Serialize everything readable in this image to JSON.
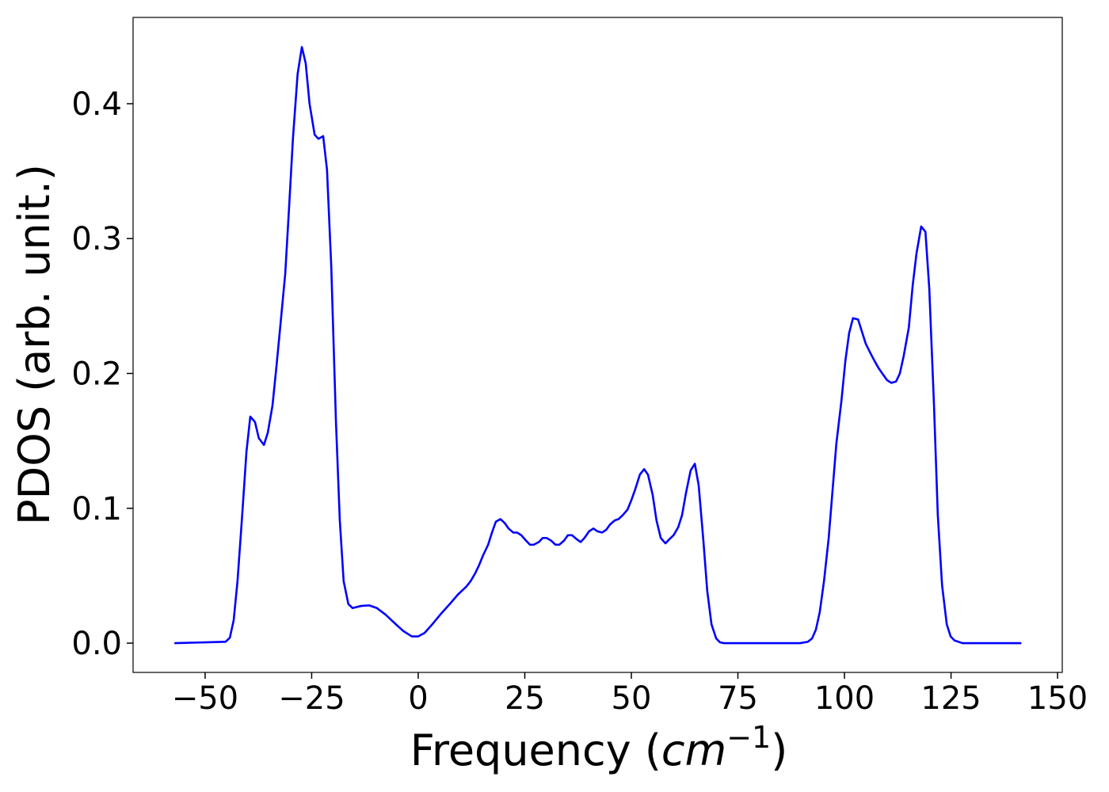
{
  "chart_data": {
    "type": "line",
    "xlabel": [
      "Frequency (",
      "cm",
      "−1",
      ")"
    ],
    "ylabel": "PDOS (arb. unit.)",
    "color": "#0000ff",
    "x": [
      -57.2,
      -45.2,
      -44.2,
      -43.3,
      -42.4,
      -41.3,
      -40.3,
      -39.4,
      -38.3,
      -37.4,
      -36.2,
      -35.3,
      -34.2,
      -33.3,
      -32.3,
      -31.2,
      -30.3,
      -29.4,
      -28.3,
      -27.3,
      -26.4,
      -25.5,
      -24.3,
      -23.4,
      -22.3,
      -21.4,
      -20.4,
      -19.3,
      -18.4,
      -17.5,
      -16.4,
      -15.4,
      -13.4,
      -11.5,
      -9.7,
      -7.6,
      -5.6,
      -3.5,
      -1.5,
      0,
      1.5,
      3.3,
      5.4,
      7.4,
      9.3,
      11.3,
      12.3,
      13.4,
      14.3,
      15.2,
      16.4,
      17.3,
      18.2,
      19.3,
      20.3,
      21.2,
      22.3,
      23.2,
      24.2,
      25.3,
      26.2,
      27.1,
      28.3,
      29.2,
      30.1,
      31.2,
      32.2,
      33.1,
      34.2,
      35.1,
      36.1,
      37.2,
      38.1,
      39.0,
      40.1,
      41.1,
      42.0,
      43.1,
      44.1,
      45.0,
      46.1,
      47.0,
      48.0,
      49.1,
      50.0,
      50.9,
      52.0,
      53.0,
      53.9,
      55.0,
      55.9,
      56.9,
      58.0,
      58.9,
      59.9,
      61.0,
      61.9,
      62.8,
      63.9,
      64.9,
      65.8,
      66.9,
      67.8,
      68.8,
      69.9,
      70.8,
      71.7,
      89.6,
      91.4,
      92.4,
      93.3,
      94.2,
      95.2,
      96.3,
      97.2,
      98.1,
      99.3,
      100.2,
      101.1,
      102.0,
      103.2,
      104.1,
      105.0,
      106.1,
      107.1,
      108.0,
      109.1,
      110.0,
      111.0,
      112.1,
      113.0,
      113.9,
      115.1,
      116.0,
      116.9,
      118.0,
      119.0,
      119.9,
      121.0,
      121.9,
      122.9,
      124.0,
      124.9,
      125.8,
      127.7,
      141.5
    ],
    "values": [
      0,
      0.001,
      0.004,
      0.017,
      0.046,
      0.095,
      0.142,
      0.168,
      0.164,
      0.152,
      0.147,
      0.156,
      0.176,
      0.204,
      0.237,
      0.274,
      0.323,
      0.374,
      0.422,
      0.442,
      0.43,
      0.4,
      0.377,
      0.374,
      0.376,
      0.351,
      0.279,
      0.164,
      0.091,
      0.046,
      0.029,
      0.026,
      0.0276,
      0.028,
      0.026,
      0.021,
      0.015,
      0.009,
      0.005,
      0.005,
      0.0076,
      0.014,
      0.022,
      0.029,
      0.036,
      0.042,
      0.046,
      0.052,
      0.058,
      0.065,
      0.073,
      0.082,
      0.09,
      0.092,
      0.089,
      0.085,
      0.082,
      0.082,
      0.08,
      0.076,
      0.073,
      0.073,
      0.075,
      0.078,
      0.078,
      0.076,
      0.073,
      0.073,
      0.076,
      0.08,
      0.08,
      0.077,
      0.075,
      0.078,
      0.083,
      0.085,
      0.083,
      0.082,
      0.084,
      0.088,
      0.091,
      0.092,
      0.095,
      0.099,
      0.106,
      0.114,
      0.125,
      0.129,
      0.125,
      0.11,
      0.091,
      0.078,
      0.074,
      0.077,
      0.08,
      0.086,
      0.095,
      0.111,
      0.128,
      0.133,
      0.117,
      0.076,
      0.039,
      0.014,
      0.0035,
      0.0006,
      0,
      0,
      0.001,
      0.0035,
      0.01,
      0.023,
      0.046,
      0.078,
      0.113,
      0.148,
      0.18,
      0.209,
      0.23,
      0.241,
      0.24,
      0.231,
      0.222,
      0.215,
      0.209,
      0.204,
      0.199,
      0.195,
      0.193,
      0.194,
      0.2,
      0.213,
      0.234,
      0.265,
      0.289,
      0.309,
      0.305,
      0.263,
      0.177,
      0.095,
      0.043,
      0.014,
      0.005,
      0.002,
      0,
      0
    ],
    "xlim": [
      -66.9,
      151.1
    ],
    "ylim": [
      -0.0217,
      0.464
    ],
    "xticks": [
      {
        "value": -50,
        "label": "−50"
      },
      {
        "value": -25,
        "label": "−25"
      },
      0,
      25,
      50,
      75,
      100,
      125,
      150
    ],
    "yticks": [
      {
        "value": 0,
        "label": "0.0"
      },
      0.1,
      0.2,
      0.3,
      0.4
    ],
    "grid": false
  }
}
